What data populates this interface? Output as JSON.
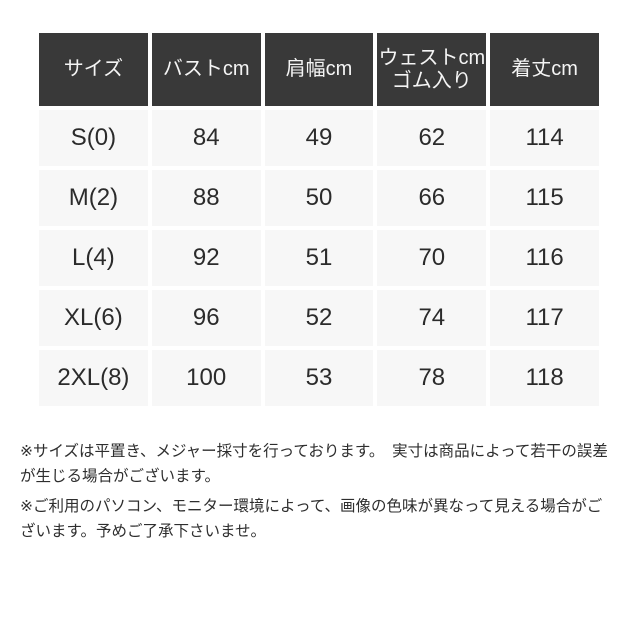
{
  "chart_data": {
    "type": "table",
    "columns": [
      "サイズ",
      "バストcm",
      "肩幅cm",
      "ウェストcm ゴム入り",
      "着丈cm"
    ],
    "rows": [
      [
        "S(0)",
        84,
        49,
        62,
        114
      ],
      [
        "M(2)",
        88,
        50,
        66,
        115
      ],
      [
        "L(4)",
        92,
        51,
        70,
        116
      ],
      [
        "XL(6)",
        96,
        52,
        74,
        117
      ],
      [
        "2XL(8)",
        100,
        53,
        78,
        118
      ]
    ]
  },
  "render": {
    "header_lines": [
      [
        "サイズ"
      ],
      [
        "バストcm"
      ],
      [
        "肩幅cm"
      ],
      [
        "ウェストcm",
        "ゴム入り"
      ],
      [
        "着丈cm"
      ]
    ]
  },
  "notes": [
    {
      "lines": [
        "※サイズは平置き、メジャー採寸を行っております。　実寸は商品によって若干の誤差",
        "が生じる場合がございます。"
      ]
    },
    {
      "lines": [
        "※ご利用のパソコン、モニター環境によって、画像の色味が異なって見える場合がご",
        "ざいます。予めご了承下さいませ。"
      ]
    }
  ],
  "colors": {
    "header_bg": "#393939",
    "header_text": "#f4f4f4",
    "cell_bg": "#f7f7f7",
    "body_text": "#2b2b2b",
    "note_text": "#2e2e2e",
    "page_bg": "#ffffff"
  }
}
